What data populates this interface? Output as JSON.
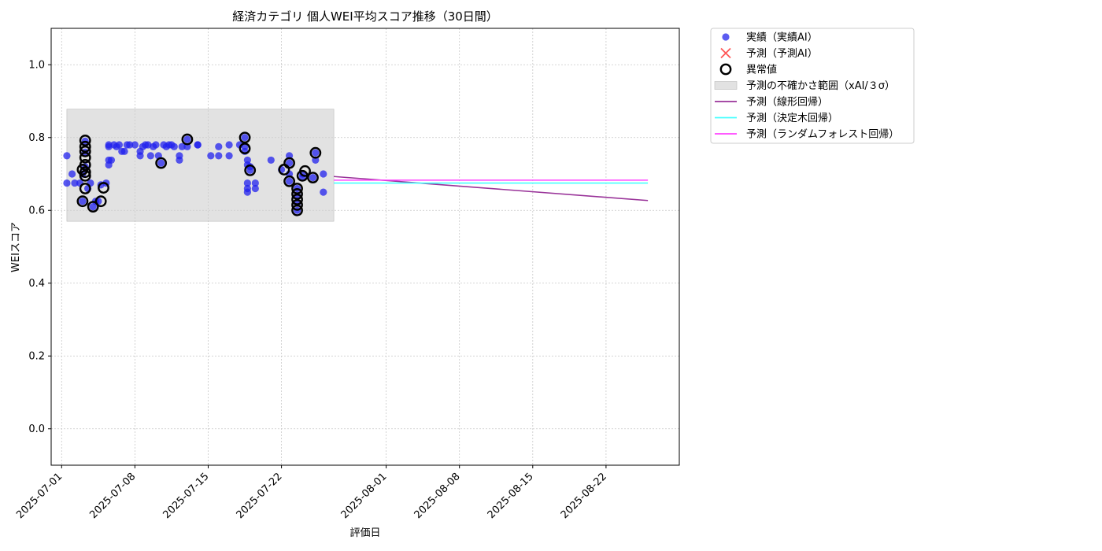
{
  "chart_data": {
    "type": "scatter",
    "title": "経済カテゴリ 個人WEI平均スコア推移（30日間）",
    "xlabel": "評価日",
    "ylabel": "WEIスコア",
    "xlim": [
      "2025-06-30",
      "2025-08-29"
    ],
    "ylim": [
      -0.1,
      1.1
    ],
    "x_ticks": [
      "2025-07-01",
      "2025-07-08",
      "2025-07-15",
      "2025-07-22",
      "2025-08-01",
      "2025-08-08",
      "2025-08-15",
      "2025-08-22"
    ],
    "y_ticks": [
      "0.0",
      "0.2",
      "0.4",
      "0.6",
      "0.8",
      "1.0"
    ],
    "grid": true,
    "legend_position": "outside-right-top",
    "legend": [
      {
        "label": "実績（実績AI）",
        "marker": "circle",
        "color": "#3333ee"
      },
      {
        "label": "予測（予測AI）",
        "marker": "x",
        "color": "#ff5555"
      },
      {
        "label": "異常値",
        "marker": "ring",
        "color": "#000000"
      },
      {
        "label": "予測の不確かさ範囲（xAI/３σ）",
        "marker": "band",
        "color": "#e2e2e2"
      },
      {
        "label": "予測（線形回帰）",
        "marker": "line",
        "color": "#993399"
      },
      {
        "label": "予測（決定木回帰）",
        "marker": "line",
        "color": "#44ffff"
      },
      {
        "label": "予測（ランダムフォレスト回帰）",
        "marker": "line",
        "color": "#ff44ff"
      }
    ],
    "uncertainty_band": {
      "x": [
        "2025-07-01 12:00",
        "2025-07-27 00:00"
      ],
      "y": [
        0.57,
        0.878
      ]
    },
    "series": [
      {
        "name": "実績（実績AI）",
        "type": "scatter",
        "color": "#2222ee",
        "points": [
          [
            "2025-07-01 12:00",
            0.75
          ],
          [
            "2025-07-01 12:00",
            0.675
          ],
          [
            "2025-07-02 00:00",
            0.7
          ],
          [
            "2025-07-02 06:00",
            0.675
          ],
          [
            "2025-07-02 18:00",
            0.675
          ],
          [
            "2025-07-03 00:00",
            0.625
          ],
          [
            "2025-07-03 00:00",
            0.7
          ],
          [
            "2025-07-03 06:00",
            0.79
          ],
          [
            "2025-07-03 06:00",
            0.76
          ],
          [
            "2025-07-03 06:00",
            0.72
          ],
          [
            "2025-07-03 12:00",
            0.66
          ],
          [
            "2025-07-03 18:00",
            0.675
          ],
          [
            "2025-07-04 00:00",
            0.61
          ],
          [
            "2025-07-04 06:00",
            0.625
          ],
          [
            "2025-07-04 12:00",
            0.625
          ],
          [
            "2025-07-04 18:00",
            0.67
          ],
          [
            "2025-07-05 06:00",
            0.675
          ],
          [
            "2025-07-05 12:00",
            0.725
          ],
          [
            "2025-07-05 12:00",
            0.738
          ],
          [
            "2025-07-05 12:00",
            0.78
          ],
          [
            "2025-07-05 12:00",
            0.775
          ],
          [
            "2025-07-05 18:00",
            0.738
          ],
          [
            "2025-07-06 00:00",
            0.78
          ],
          [
            "2025-07-06 06:00",
            0.775
          ],
          [
            "2025-07-06 12:00",
            0.78
          ],
          [
            "2025-07-06 18:00",
            0.762
          ],
          [
            "2025-07-07 00:00",
            0.762
          ],
          [
            "2025-07-07 06:00",
            0.78
          ],
          [
            "2025-07-07 12:00",
            0.78
          ],
          [
            "2025-07-08 00:00",
            0.78
          ],
          [
            "2025-07-08 12:00",
            0.762
          ],
          [
            "2025-07-08 12:00",
            0.75
          ],
          [
            "2025-07-08 18:00",
            0.775
          ],
          [
            "2025-07-09 00:00",
            0.78
          ],
          [
            "2025-07-09 06:00",
            0.78
          ],
          [
            "2025-07-09 12:00",
            0.75
          ],
          [
            "2025-07-09 18:00",
            0.775
          ],
          [
            "2025-07-10 00:00",
            0.78
          ],
          [
            "2025-07-10 06:00",
            0.75
          ],
          [
            "2025-07-10 12:00",
            0.73
          ],
          [
            "2025-07-10 18:00",
            0.78
          ],
          [
            "2025-07-11 00:00",
            0.775
          ],
          [
            "2025-07-11 06:00",
            0.78
          ],
          [
            "2025-07-11 12:00",
            0.78
          ],
          [
            "2025-07-11 18:00",
            0.775
          ],
          [
            "2025-07-12 06:00",
            0.75
          ],
          [
            "2025-07-12 06:00",
            0.738
          ],
          [
            "2025-07-12 12:00",
            0.775
          ],
          [
            "2025-07-13 00:00",
            0.795
          ],
          [
            "2025-07-13 00:00",
            0.775
          ],
          [
            "2025-07-14 00:00",
            0.78
          ],
          [
            "2025-07-14 00:00",
            0.78
          ],
          [
            "2025-07-15 06:00",
            0.75
          ],
          [
            "2025-07-16 00:00",
            0.775
          ],
          [
            "2025-07-16 00:00",
            0.75
          ],
          [
            "2025-07-17 00:00",
            0.78
          ],
          [
            "2025-07-17 00:00",
            0.75
          ],
          [
            "2025-07-18 00:00",
            0.78
          ],
          [
            "2025-07-18 12:00",
            0.8
          ],
          [
            "2025-07-18 12:00",
            0.775
          ],
          [
            "2025-07-18 12:00",
            0.762
          ],
          [
            "2025-07-18 18:00",
            0.738
          ],
          [
            "2025-07-18 18:00",
            0.725
          ],
          [
            "2025-07-18 18:00",
            0.675
          ],
          [
            "2025-07-18 18:00",
            0.66
          ],
          [
            "2025-07-18 18:00",
            0.65
          ],
          [
            "2025-07-19 00:00",
            0.71
          ],
          [
            "2025-07-19 00:00",
            0.72
          ],
          [
            "2025-07-19 12:00",
            0.675
          ],
          [
            "2025-07-19 12:00",
            0.66
          ],
          [
            "2025-07-21 00:00",
            0.738
          ],
          [
            "2025-07-22 00:00",
            0.712
          ],
          [
            "2025-07-22 18:00",
            0.75
          ],
          [
            "2025-07-22 18:00",
            0.73
          ],
          [
            "2025-07-22 18:00",
            0.7
          ],
          [
            "2025-07-22 18:00",
            0.68
          ],
          [
            "2025-07-23 12:00",
            0.66
          ],
          [
            "2025-07-23 12:00",
            0.64
          ],
          [
            "2025-07-23 12:00",
            0.62
          ],
          [
            "2025-07-23 12:00",
            0.6
          ],
          [
            "2025-07-24 00:00",
            0.69
          ],
          [
            "2025-07-24 00:00",
            0.7
          ],
          [
            "2025-07-25 00:00",
            0.69
          ],
          [
            "2025-07-25 06:00",
            0.738
          ],
          [
            "2025-07-25 06:00",
            0.758
          ],
          [
            "2025-07-26 00:00",
            0.7
          ],
          [
            "2025-07-26 00:00",
            0.65
          ]
        ]
      },
      {
        "name": "異常値",
        "type": "ring",
        "color": "#000000",
        "points": [
          [
            "2025-07-03 00:00",
            0.625
          ],
          [
            "2025-07-03 00:00",
            0.712
          ],
          [
            "2025-07-03 06:00",
            0.792
          ],
          [
            "2025-07-03 06:00",
            0.775
          ],
          [
            "2025-07-03 06:00",
            0.762
          ],
          [
            "2025-07-03 06:00",
            0.745
          ],
          [
            "2025-07-03 06:00",
            0.725
          ],
          [
            "2025-07-03 06:00",
            0.705
          ],
          [
            "2025-07-03 06:00",
            0.695
          ],
          [
            "2025-07-03 06:00",
            0.66
          ],
          [
            "2025-07-04 00:00",
            0.61
          ],
          [
            "2025-07-04 18:00",
            0.625
          ],
          [
            "2025-07-05 00:00",
            0.662
          ],
          [
            "2025-07-10 12:00",
            0.73
          ],
          [
            "2025-07-13 00:00",
            0.795
          ],
          [
            "2025-07-18 12:00",
            0.8
          ],
          [
            "2025-07-18 12:00",
            0.77
          ],
          [
            "2025-07-19 00:00",
            0.71
          ],
          [
            "2025-07-22 06:00",
            0.712
          ],
          [
            "2025-07-22 18:00",
            0.73
          ],
          [
            "2025-07-22 18:00",
            0.68
          ],
          [
            "2025-07-23 12:00",
            0.66
          ],
          [
            "2025-07-23 12:00",
            0.645
          ],
          [
            "2025-07-23 12:00",
            0.63
          ],
          [
            "2025-07-23 12:00",
            0.615
          ],
          [
            "2025-07-23 12:00",
            0.6
          ],
          [
            "2025-07-24 00:00",
            0.695
          ],
          [
            "2025-07-24 06:00",
            0.708
          ],
          [
            "2025-07-25 00:00",
            0.69
          ],
          [
            "2025-07-25 06:00",
            0.758
          ]
        ]
      },
      {
        "name": "予測（線形回帰）",
        "type": "line",
        "color": "#993399",
        "points": [
          [
            "2025-07-27 00:00",
            0.693
          ],
          [
            "2025-08-26 00:00",
            0.627
          ]
        ]
      },
      {
        "name": "予測（決定木回帰）",
        "type": "line",
        "color": "#44ffff",
        "points": [
          [
            "2025-07-27 00:00",
            0.675
          ],
          [
            "2025-08-26 00:00",
            0.675
          ]
        ]
      },
      {
        "name": "予測（ランダムフォレスト回帰）",
        "type": "line",
        "color": "#ff44ff",
        "points": [
          [
            "2025-07-27 00:00",
            0.683
          ],
          [
            "2025-08-26 00:00",
            0.683
          ]
        ]
      }
    ]
  }
}
